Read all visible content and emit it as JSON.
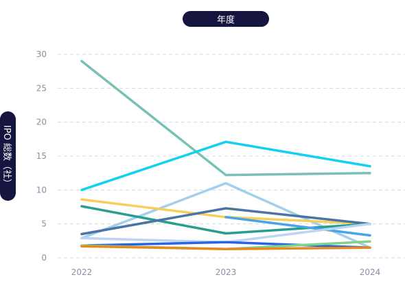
{
  "chart_data": {
    "type": "line",
    "xlabel": "年度",
    "ylabel": "IPO 総数（社）",
    "x": [
      "2022",
      "2023",
      "2024"
    ],
    "ylim": [
      0,
      30
    ],
    "yticks": [
      0,
      5,
      10,
      15,
      20,
      25,
      30
    ],
    "grid": true,
    "legend": "none",
    "series": [
      {
        "color": "#79c1b7",
        "values": [
          29,
          12.2,
          12.5
        ]
      },
      {
        "color": "#11d0f2",
        "values": [
          10,
          17.1,
          13.5
        ]
      },
      {
        "color": "#a3cfec",
        "values": [
          2.9,
          11,
          1.5
        ]
      },
      {
        "color": "#f6cf5b",
        "values": [
          8.6,
          6,
          5
        ]
      },
      {
        "color": "#269f91",
        "values": [
          7.6,
          3.6,
          5
        ]
      },
      {
        "color": "#4a74a4",
        "values": [
          3.5,
          7.3,
          5
        ]
      },
      {
        "color": "#47a4e8",
        "values": [
          null,
          6,
          3.3
        ]
      },
      {
        "color": "#bcd4f5",
        "values": [
          2.9,
          2.3,
          5
        ]
      },
      {
        "color": "#2a63e4",
        "values": [
          1.8,
          2.3,
          1.5
        ]
      },
      {
        "color": "#7fd38a",
        "values": [
          1.8,
          1.3,
          2.4
        ]
      },
      {
        "color": "#e8891e",
        "values": [
          1.7,
          1.3,
          1.5
        ]
      }
    ]
  }
}
